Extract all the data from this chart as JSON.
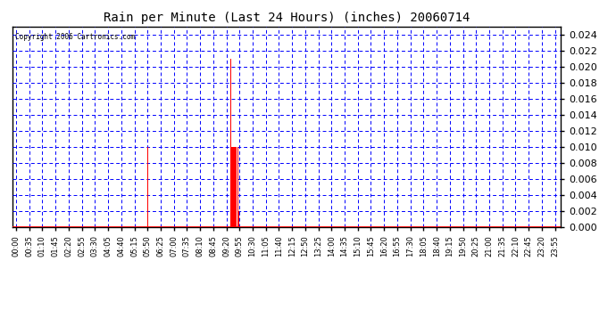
{
  "title": "Rain per Minute (Last 24 Hours) (inches) 20060714",
  "copyright_text": "Copyright 2006 Cartronics.com",
  "background_color": "#ffffff",
  "plot_bg_color": "#ffffff",
  "bar_color": "#ff0000",
  "axis_color": "#ff0000",
  "grid_color": "#0000ff",
  "border_color": "#000000",
  "ylim": [
    0.0,
    0.025
  ],
  "yticks": [
    0.0,
    0.002,
    0.004,
    0.006,
    0.008,
    0.01,
    0.012,
    0.014,
    0.016,
    0.018,
    0.02,
    0.022,
    0.024
  ],
  "total_minutes": 1440,
  "data": {
    "350": 0.01,
    "571": 0.021,
    "575": 0.01,
    "576": 0.01,
    "578": 0.01,
    "580": 0.01,
    "582": 0.002,
    "585": 0.01,
    "590": 0.01,
    "592": 0.002
  },
  "xtick_positions": [
    0,
    35,
    70,
    105,
    140,
    175,
    210,
    245,
    280,
    315,
    350,
    385,
    420,
    455,
    490,
    525,
    560,
    595,
    630,
    665,
    700,
    735,
    770,
    805,
    840,
    875,
    910,
    945,
    980,
    1015,
    1050,
    1085,
    1120,
    1155,
    1190,
    1225,
    1260,
    1295,
    1330,
    1365,
    1400,
    1435
  ],
  "xtick_labels": [
    "00:00",
    "00:35",
    "01:10",
    "01:45",
    "02:20",
    "02:55",
    "03:30",
    "04:05",
    "04:40",
    "05:15",
    "05:50",
    "06:25",
    "07:00",
    "07:35",
    "08:10",
    "08:45",
    "09:20",
    "09:55",
    "10:30",
    "11:05",
    "11:40",
    "12:15",
    "12:50",
    "13:25",
    "14:00",
    "14:35",
    "15:10",
    "15:45",
    "16:20",
    "16:55",
    "17:30",
    "18:05",
    "18:40",
    "19:15",
    "19:50",
    "20:25",
    "21:00",
    "21:35",
    "22:10",
    "22:45",
    "23:20",
    "23:55"
  ]
}
